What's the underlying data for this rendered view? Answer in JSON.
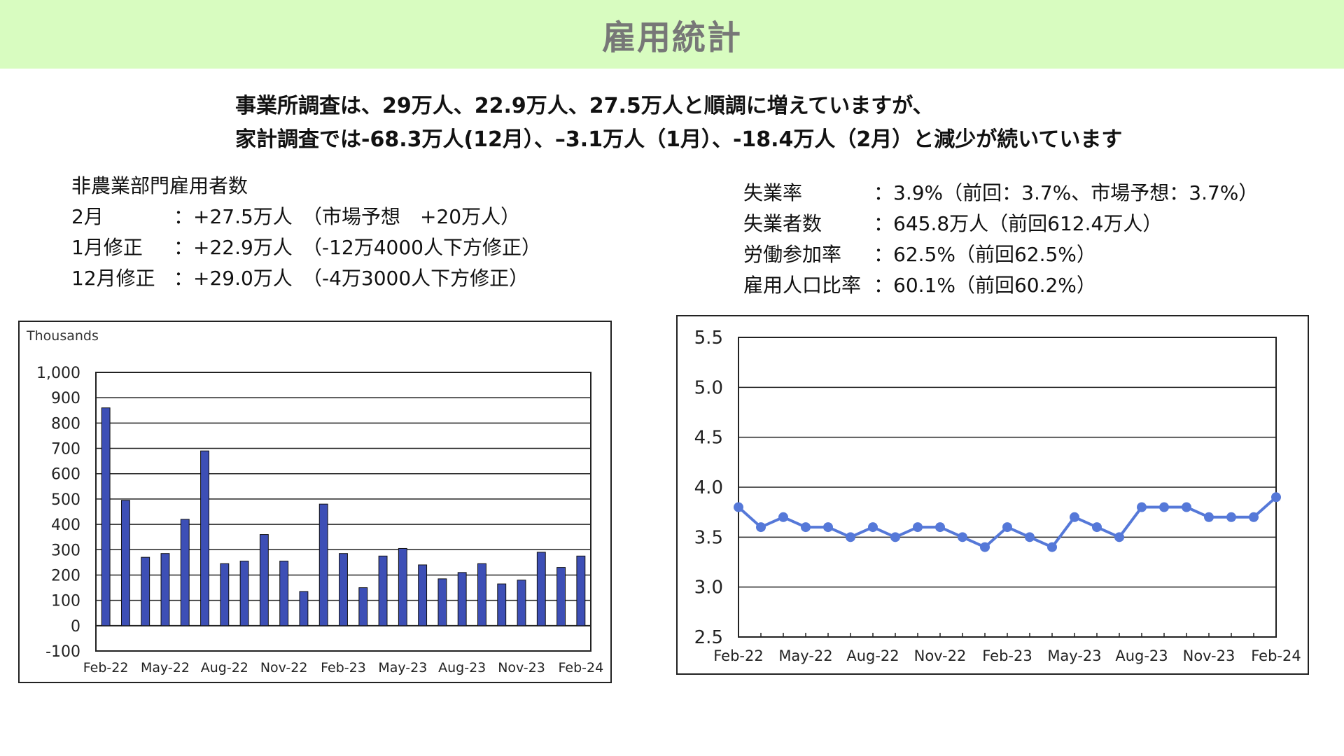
{
  "page": {
    "title": "雇用統計",
    "headline": [
      "事業所調査は、29万人、22.9万人、27.5万人と順調に増えていますが、",
      "家計調査では-68.3万人(12月）、–3.1万人（1月）、-18.4万人（2月）と減少が続いています"
    ]
  },
  "left_info": {
    "heading": "非農業部門雇用者数",
    "rows": [
      {
        "label": "2月",
        "value": "：+27.5万人",
        "note": "（市場予想　+20万人）"
      },
      {
        "label": "1月修正",
        "value": "：+22.9万人",
        "note": "（-12万4000人下方修正）"
      },
      {
        "label": "12月修正",
        "value": "：+29.0万人",
        "note": "（-4万3000人下方修正）"
      }
    ]
  },
  "right_info": {
    "rows": [
      {
        "label": "失業率",
        "value": "：3.9%（前回：3.7%、市場予想：3.7%）"
      },
      {
        "label": "失業者数",
        "value": "：645.8万人（前回612.4万人）"
      },
      {
        "label": "労働参加率",
        "value": "：62.5%（前回62.5%）"
      },
      {
        "label": "雇用人口比率",
        "value": "：60.1%（前回60.2%）"
      }
    ]
  },
  "colors": {
    "title_bg": "#d8fcc0",
    "title_text": "#777777",
    "bar_fill": "#3d4fb6",
    "line_color": "#5578d8"
  },
  "chart_data": [
    {
      "type": "bar",
      "unit_label": "Thousands",
      "x": [
        "Feb-22",
        "Mar-22",
        "Apr-22",
        "May-22",
        "Jun-22",
        "Jul-22",
        "Aug-22",
        "Sep-22",
        "Oct-22",
        "Nov-22",
        "Dec-22",
        "Jan-23",
        "Feb-23",
        "Mar-23",
        "Apr-23",
        "May-23",
        "Jun-23",
        "Jul-23",
        "Aug-23",
        "Sep-23",
        "Oct-23",
        "Nov-23",
        "Dec-23",
        "Jan-24",
        "Feb-24"
      ],
      "values": [
        860,
        495,
        270,
        285,
        420,
        690,
        245,
        255,
        360,
        255,
        135,
        480,
        285,
        150,
        275,
        305,
        240,
        185,
        210,
        245,
        165,
        180,
        290,
        230,
        275
      ],
      "x_tick_labels": [
        "Feb-22",
        "May-22",
        "Aug-22",
        "Nov-22",
        "Feb-23",
        "May-23",
        "Aug-23",
        "Nov-23",
        "Feb-24"
      ],
      "y_ticks": [
        "1,000",
        "900",
        "800",
        "700",
        "600",
        "500",
        "400",
        "300",
        "200",
        "100",
        "0",
        "-100"
      ],
      "ylim": [
        -100,
        1000
      ],
      "grid": true
    },
    {
      "type": "line",
      "x": [
        "Feb-22",
        "Mar-22",
        "Apr-22",
        "May-22",
        "Jun-22",
        "Jul-22",
        "Aug-22",
        "Sep-22",
        "Oct-22",
        "Nov-22",
        "Dec-22",
        "Jan-23",
        "Feb-23",
        "Mar-23",
        "Apr-23",
        "May-23",
        "Jun-23",
        "Jul-23",
        "Aug-23",
        "Sep-23",
        "Oct-23",
        "Nov-23",
        "Dec-23",
        "Jan-24",
        "Feb-24"
      ],
      "values": [
        3.8,
        3.6,
        3.7,
        3.6,
        3.6,
        3.5,
        3.6,
        3.5,
        3.6,
        3.6,
        3.5,
        3.4,
        3.6,
        3.5,
        3.4,
        3.7,
        3.6,
        3.5,
        3.8,
        3.8,
        3.8,
        3.7,
        3.7,
        3.7,
        3.9
      ],
      "x_tick_labels": [
        "Feb-22",
        "May-22",
        "Aug-22",
        "Nov-22",
        "Feb-23",
        "May-23",
        "Aug-23",
        "Nov-23",
        "Feb-24"
      ],
      "y_ticks": [
        "5.5",
        "5.0",
        "4.5",
        "4.0",
        "3.5",
        "3.0",
        "2.5"
      ],
      "ylim": [
        2.5,
        5.5
      ],
      "grid": true
    }
  ]
}
